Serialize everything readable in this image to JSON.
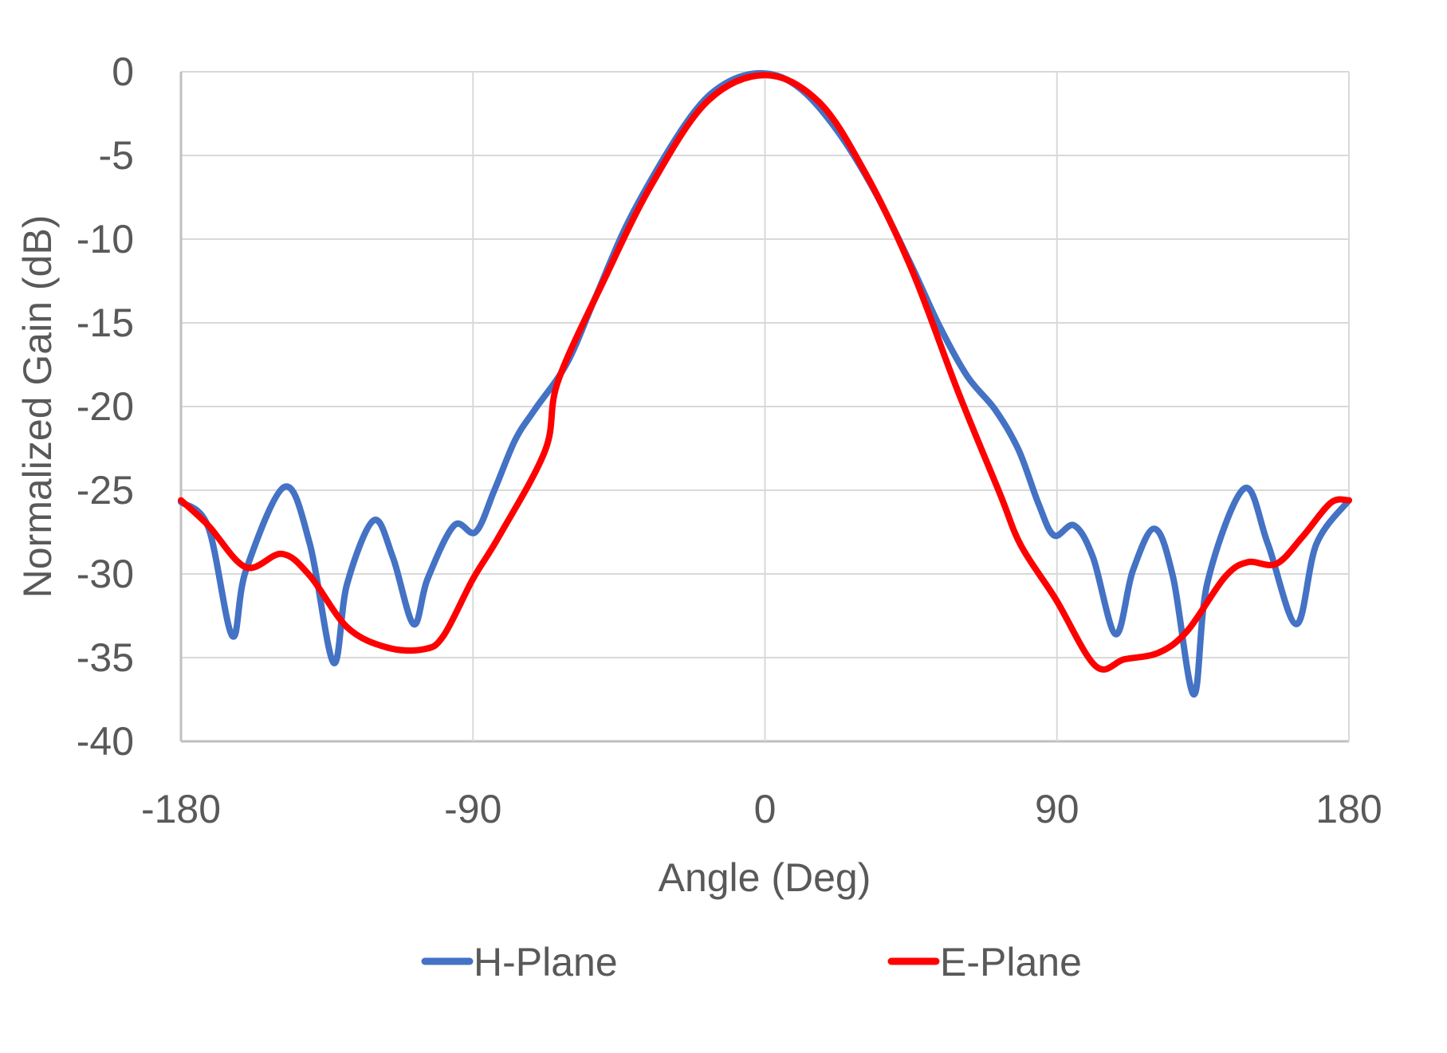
{
  "chart_data": {
    "type": "line",
    "title": "",
    "xlabel": "Angle (Deg)",
    "ylabel": "Normalized Gain (dB)",
    "xlim": [
      -180,
      180
    ],
    "ylim": [
      -40,
      0
    ],
    "xticks": [
      -180,
      -90,
      0,
      90,
      180
    ],
    "yticks": [
      0,
      -5,
      -10,
      -15,
      -20,
      -25,
      -30,
      -35,
      -40
    ],
    "xtick_labels": [
      "-180",
      "-90",
      "0",
      "90",
      "180"
    ],
    "ytick_labels": [
      "0",
      "-5",
      "-10",
      "-15",
      "-20",
      "-25",
      "-30",
      "-35",
      "-40"
    ],
    "grid": true,
    "legend_position": "bottom",
    "series": [
      {
        "name": "H-Plane",
        "color": "#4472C4",
        "points": [
          [
            -180,
            -25.7
          ],
          [
            -171.6,
            -27.2
          ],
          [
            -164.2,
            -33.7
          ],
          [
            -160,
            -29.8
          ],
          [
            -148.1,
            -24.8
          ],
          [
            -140.3,
            -28.2
          ],
          [
            -133,
            -35.3
          ],
          [
            -128.8,
            -30.6
          ],
          [
            -120.6,
            -26.8
          ],
          [
            -114.7,
            -29.0
          ],
          [
            -108.3,
            -33.0
          ],
          [
            -104,
            -30.3
          ],
          [
            -95.8,
            -27.1
          ],
          [
            -89.2,
            -27.5
          ],
          [
            -83.4,
            -25.0
          ],
          [
            -77,
            -22.0
          ],
          [
            -71,
            -20.2
          ],
          [
            -61,
            -17.4
          ],
          [
            -52.3,
            -13.5
          ],
          [
            -40.9,
            -8.5
          ],
          [
            -23.7,
            -2.9
          ],
          [
            -12.2,
            -0.7
          ],
          [
            0,
            -0.1
          ],
          [
            10.8,
            -1.0
          ],
          [
            22.2,
            -3.5
          ],
          [
            33.7,
            -7.1
          ],
          [
            45.2,
            -11.6
          ],
          [
            53.8,
            -15.2
          ],
          [
            62.4,
            -18.2
          ],
          [
            71,
            -20.2
          ],
          [
            78.2,
            -22.6
          ],
          [
            84.3,
            -25.8
          ],
          [
            89.1,
            -27.7
          ],
          [
            95.3,
            -27.1
          ],
          [
            101.1,
            -29.0
          ],
          [
            108.1,
            -33.6
          ],
          [
            113.4,
            -29.8
          ],
          [
            120.1,
            -27.3
          ],
          [
            125.8,
            -30.2
          ],
          [
            132.2,
            -37.2
          ],
          [
            136.4,
            -30.5
          ],
          [
            147.7,
            -24.9
          ],
          [
            155,
            -28.2
          ],
          [
            163.8,
            -33.0
          ],
          [
            170,
            -28.2
          ],
          [
            180,
            -25.6
          ]
        ]
      },
      {
        "name": "E-Plane",
        "color": "#FF0000",
        "points": [
          [
            -180,
            -25.6
          ],
          [
            -171.6,
            -27.1
          ],
          [
            -160,
            -29.6
          ],
          [
            -148.9,
            -28.8
          ],
          [
            -140.3,
            -30.1
          ],
          [
            -128.7,
            -33.2
          ],
          [
            -116.4,
            -34.4
          ],
          [
            -105.2,
            -34.5
          ],
          [
            -99.1,
            -33.7
          ],
          [
            -90,
            -30.3
          ],
          [
            -81.8,
            -27.7
          ],
          [
            -67.7,
            -22.6
          ],
          [
            -63.8,
            -18.5
          ],
          [
            -49.5,
            -12.4
          ],
          [
            -35.1,
            -6.8
          ],
          [
            -17.9,
            -1.8
          ],
          [
            0,
            -0.2
          ],
          [
            16.6,
            -1.8
          ],
          [
            30.8,
            -6.0
          ],
          [
            45.2,
            -11.8
          ],
          [
            59.5,
            -19.1
          ],
          [
            72.4,
            -25.2
          ],
          [
            78.9,
            -28.3
          ],
          [
            89.6,
            -31.5
          ],
          [
            101.9,
            -35.5
          ],
          [
            110.8,
            -35.1
          ],
          [
            121.4,
            -34.7
          ],
          [
            130.2,
            -33.4
          ],
          [
            141.7,
            -30.2
          ],
          [
            148.8,
            -29.3
          ],
          [
            157.6,
            -29.4
          ],
          [
            165.6,
            -27.8
          ],
          [
            174.4,
            -25.75
          ],
          [
            180,
            -25.6
          ]
        ]
      }
    ]
  }
}
